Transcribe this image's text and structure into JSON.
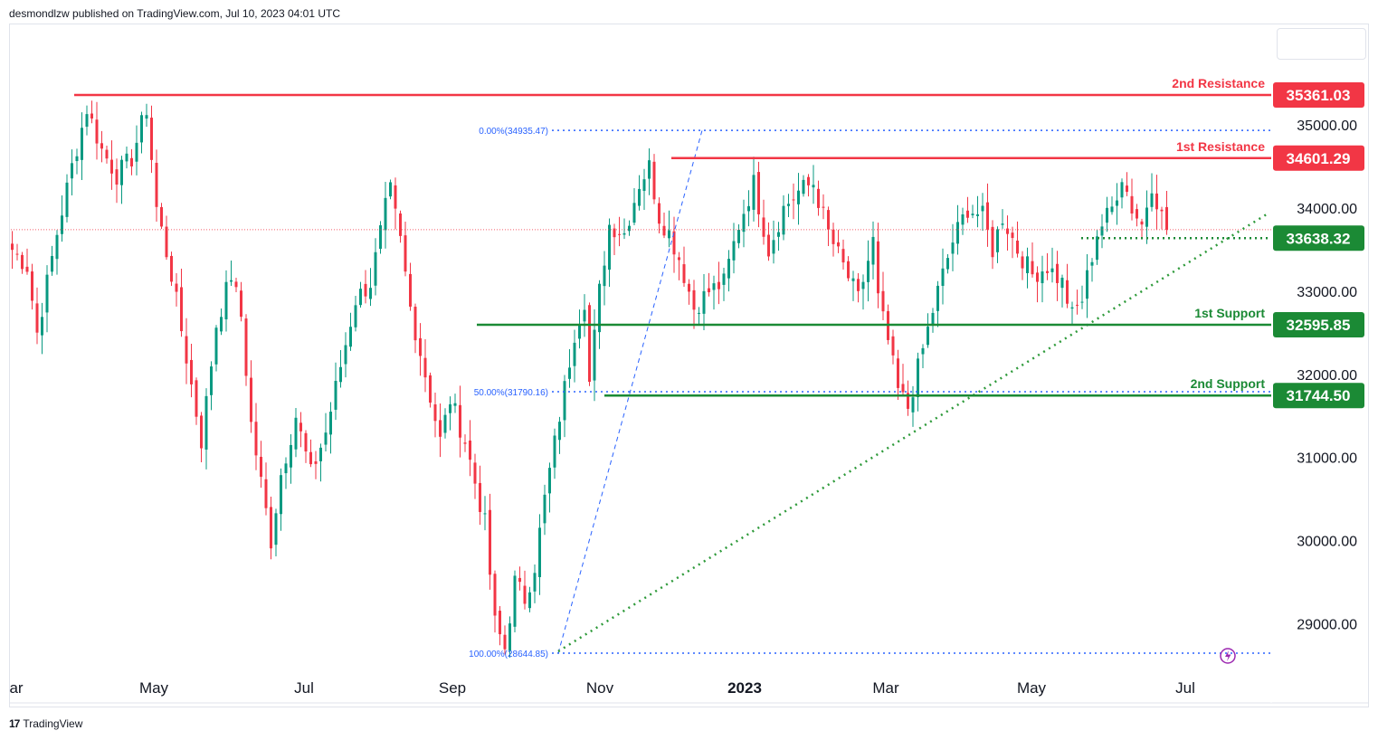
{
  "header": {
    "text": "desmondlzw published on TradingView.com, Jul 10, 2023 04:01 UTC"
  },
  "footer": {
    "logo": "17",
    "brand": "TradingView"
  },
  "colors": {
    "up": "#089981",
    "down": "#f23645",
    "resistance": "#f23645",
    "support": "#1b8a35",
    "fib": "#2962ff",
    "trend": "#2e9a3a",
    "axis_text": "#131722"
  },
  "chart_data": {
    "type": "candlestick",
    "ylim": [
      28450,
      35950
    ],
    "y_ticks": [
      29000,
      30000,
      31000,
      32000,
      33000,
      34000,
      35000
    ],
    "y_tick_labels": [
      "29000.00",
      "30000.00",
      "31000.00",
      "32000.00",
      "33000.00",
      "34000.00",
      "35000.00"
    ],
    "x_ticks": [
      {
        "label": "ar",
        "bold": false
      },
      {
        "label": "May",
        "bold": false
      },
      {
        "label": "Jul",
        "bold": false
      },
      {
        "label": "Sep",
        "bold": false
      },
      {
        "label": "Nov",
        "bold": false
      },
      {
        "label": "2023",
        "bold": true
      },
      {
        "label": "Mar",
        "bold": false
      },
      {
        "label": "May",
        "bold": false
      },
      {
        "label": "Jul",
        "bold": false
      }
    ],
    "levels": [
      {
        "name": "2nd Resistance",
        "value": 35361.03,
        "label": "35361.03",
        "kind": "resistance"
      },
      {
        "name": "1st Resistance",
        "value": 34601.29,
        "label": "34601.29",
        "kind": "resistance"
      },
      {
        "name": "",
        "value": 33638.32,
        "label": "33638.32",
        "kind": "pivot"
      },
      {
        "name": "1st Support",
        "value": 32595.85,
        "label": "32595.85",
        "kind": "support"
      },
      {
        "name": "2nd Support",
        "value": 31744.5,
        "label": "31744.50",
        "kind": "support"
      }
    ],
    "fib_levels": [
      {
        "label": "0.00%(34935.47)",
        "value": 34935.47
      },
      {
        "label": "50.00%(31790.16)",
        "value": 31790.16
      },
      {
        "label": "100.00%(28644.85)",
        "value": 28644.85
      }
    ],
    "current_price": 33740,
    "anchors": [
      {
        "i": 0,
        "p": 33500
      },
      {
        "i": 3,
        "p": 33300
      },
      {
        "i": 5,
        "p": 32500
      },
      {
        "i": 9,
        "p": 33700
      },
      {
        "i": 12,
        "p": 34500
      },
      {
        "i": 15,
        "p": 35200
      },
      {
        "i": 18,
        "p": 34700
      },
      {
        "i": 21,
        "p": 34400
      },
      {
        "i": 24,
        "p": 34600
      },
      {
        "i": 27,
        "p": 35200
      },
      {
        "i": 29,
        "p": 34000
      },
      {
        "i": 32,
        "p": 33200
      },
      {
        "i": 35,
        "p": 32200
      },
      {
        "i": 38,
        "p": 31200
      },
      {
        "i": 41,
        "p": 32600
      },
      {
        "i": 44,
        "p": 33200
      },
      {
        "i": 46,
        "p": 32700
      },
      {
        "i": 48,
        "p": 31400
      },
      {
        "i": 52,
        "p": 30000
      },
      {
        "i": 54,
        "p": 30800
      },
      {
        "i": 57,
        "p": 31500
      },
      {
        "i": 60,
        "p": 30800
      },
      {
        "i": 63,
        "p": 31300
      },
      {
        "i": 66,
        "p": 32100
      },
      {
        "i": 69,
        "p": 32900
      },
      {
        "i": 72,
        "p": 33100
      },
      {
        "i": 75,
        "p": 34000
      },
      {
        "i": 76,
        "p": 34200
      },
      {
        "i": 78,
        "p": 33600
      },
      {
        "i": 80,
        "p": 32800
      },
      {
        "i": 83,
        "p": 32000
      },
      {
        "i": 86,
        "p": 31200
      },
      {
        "i": 88,
        "p": 31700
      },
      {
        "i": 91,
        "p": 31200
      },
      {
        "i": 95,
        "p": 30200
      },
      {
        "i": 97,
        "p": 29000
      },
      {
        "i": 99,
        "p": 28700
      },
      {
        "i": 101,
        "p": 29500
      },
      {
        "i": 103,
        "p": 29300
      },
      {
        "i": 105,
        "p": 29700
      },
      {
        "i": 107,
        "p": 30500
      },
      {
        "i": 110,
        "p": 31500
      },
      {
        "i": 113,
        "p": 32500
      },
      {
        "i": 115,
        "p": 32900
      },
      {
        "i": 116,
        "p": 31900
      },
      {
        "i": 118,
        "p": 33000
      },
      {
        "i": 120,
        "p": 33800
      },
      {
        "i": 123,
        "p": 33700
      },
      {
        "i": 126,
        "p": 34300
      },
      {
        "i": 128,
        "p": 34500
      },
      {
        "i": 130,
        "p": 33900
      },
      {
        "i": 132,
        "p": 33700
      },
      {
        "i": 134,
        "p": 33400
      },
      {
        "i": 137,
        "p": 32800
      },
      {
        "i": 140,
        "p": 33000
      },
      {
        "i": 143,
        "p": 33100
      },
      {
        "i": 146,
        "p": 33800
      },
      {
        "i": 149,
        "p": 34300
      },
      {
        "i": 152,
        "p": 33500
      },
      {
        "i": 155,
        "p": 34000
      },
      {
        "i": 158,
        "p": 34200
      },
      {
        "i": 161,
        "p": 34300
      },
      {
        "i": 164,
        "p": 33700
      },
      {
        "i": 167,
        "p": 33300
      },
      {
        "i": 170,
        "p": 32900
      },
      {
        "i": 173,
        "p": 33600
      },
      {
        "i": 174,
        "p": 32900
      },
      {
        "i": 176,
        "p": 32400
      },
      {
        "i": 178,
        "p": 31800
      },
      {
        "i": 180,
        "p": 31600
      },
      {
        "i": 183,
        "p": 32300
      },
      {
        "i": 186,
        "p": 33000
      },
      {
        "i": 189,
        "p": 33600
      },
      {
        "i": 192,
        "p": 34000
      },
      {
        "i": 195,
        "p": 33900
      },
      {
        "i": 197,
        "p": 33500
      },
      {
        "i": 199,
        "p": 33900
      },
      {
        "i": 202,
        "p": 33500
      },
      {
        "i": 205,
        "p": 33200
      },
      {
        "i": 208,
        "p": 33300
      },
      {
        "i": 211,
        "p": 33100
      },
      {
        "i": 213,
        "p": 32700
      },
      {
        "i": 215,
        "p": 32900
      },
      {
        "i": 218,
        "p": 33700
      },
      {
        "i": 221,
        "p": 34000
      },
      {
        "i": 223,
        "p": 34400
      },
      {
        "i": 225,
        "p": 34000
      },
      {
        "i": 227,
        "p": 33800
      },
      {
        "i": 229,
        "p": 34300
      },
      {
        "i": 231,
        "p": 33900
      },
      {
        "i": 232,
        "p": 33740
      }
    ]
  }
}
